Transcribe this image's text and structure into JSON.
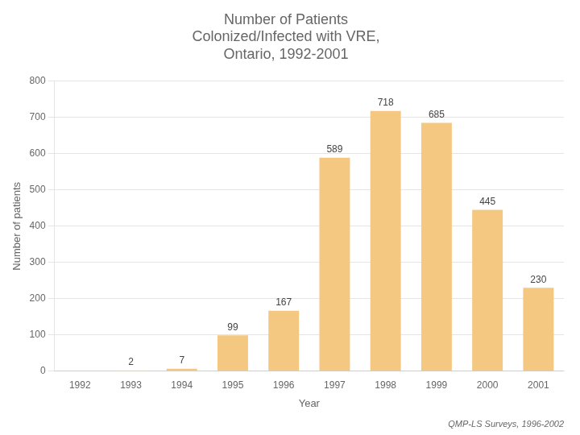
{
  "chart_data": {
    "type": "bar",
    "title": "Number of Patients\nColonized/Infected with VRE,\nOntario, 1992-2001",
    "xlabel": "Year",
    "ylabel": "Number of patients",
    "categories": [
      "1992",
      "1993",
      "1994",
      "1995",
      "1996",
      "1997",
      "1998",
      "1999",
      "2000",
      "2001"
    ],
    "values": [
      0,
      2,
      7,
      99,
      167,
      589,
      718,
      685,
      445,
      230
    ],
    "data_labels": true,
    "value_labels": [
      null,
      "2",
      "7",
      "99",
      "167",
      "589",
      "718",
      "685",
      "445",
      "230"
    ],
    "color": "#F5C882",
    "ylim": [
      0,
      800
    ],
    "yticks": [
      0,
      100,
      200,
      300,
      400,
      500,
      600,
      700,
      800
    ],
    "grid": true,
    "annotations": [
      "QMP-LS Surveys, 1996-2002"
    ]
  }
}
